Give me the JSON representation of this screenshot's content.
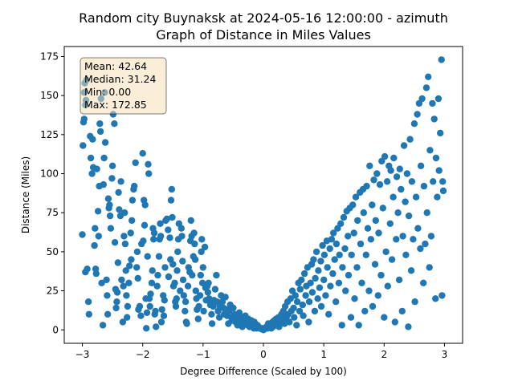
{
  "chart_data": {
    "type": "scatter",
    "title_line1": "Random city Buynaksk at 2024-05-16 12:00:00  - azimuth",
    "title_line2": "Graph of Distance in Miles Values",
    "xlabel": "Degree Difference (Scaled by 100)",
    "ylabel": "Distance (Miles)",
    "xlim": [
      -3.3,
      3.3
    ],
    "ylim": [
      -8.6,
      181.4
    ],
    "xticks": [
      -3,
      -2,
      -1,
      0,
      1,
      2,
      3
    ],
    "xtick_labels": [
      "−3",
      "−2",
      "−1",
      "0",
      "1",
      "2",
      "3"
    ],
    "yticks": [
      0,
      25,
      50,
      75,
      100,
      125,
      150,
      175
    ],
    "ytick_labels": [
      "0",
      "25",
      "50",
      "75",
      "100",
      "125",
      "150",
      "175"
    ],
    "grid": false,
    "marker_color": "#1f77b4",
    "stats": {
      "mean": "Mean: 42.64",
      "median": "Median: 31.24",
      "min": "Min: 0.00",
      "max": "Max: 172.85"
    },
    "points": [
      [
        -3.0,
        61
      ],
      [
        -2.99,
        118
      ],
      [
        -2.98,
        133
      ],
      [
        -2.97,
        135
      ],
      [
        -2.97,
        152
      ],
      [
        -2.96,
        158
      ],
      [
        -2.95,
        144
      ],
      [
        -2.94,
        147
      ],
      [
        -2.93,
        160
      ],
      [
        -2.95,
        37
      ],
      [
        -2.92,
        39
      ],
      [
        -2.9,
        18
      ],
      [
        -2.89,
        10
      ],
      [
        -2.87,
        124
      ],
      [
        -2.86,
        110
      ],
      [
        -2.84,
        100
      ],
      [
        -2.83,
        122
      ],
      [
        -2.82,
        104
      ],
      [
        -2.8,
        54
      ],
      [
        -2.79,
        65
      ],
      [
        -2.78,
        39
      ],
      [
        -2.77,
        36
      ],
      [
        -2.76,
        103
      ],
      [
        -2.74,
        76
      ],
      [
        -2.73,
        60
      ],
      [
        -2.72,
        92
      ],
      [
        -2.71,
        132
      ],
      [
        -2.7,
        127
      ],
      [
        -2.69,
        148
      ],
      [
        -2.68,
        30
      ],
      [
        -2.66,
        3
      ],
      [
        -2.65,
        93
      ],
      [
        -2.64,
        110
      ],
      [
        -2.63,
        152
      ],
      [
        -2.62,
        120
      ],
      [
        -2.6,
        32
      ],
      [
        -2.59,
        22
      ],
      [
        -2.58,
        10
      ],
      [
        -2.57,
        84
      ],
      [
        -2.56,
        78
      ],
      [
        -2.55,
        80
      ],
      [
        -2.54,
        73
      ],
      [
        -2.53,
        65
      ],
      [
        -2.51,
        97
      ],
      [
        -2.5,
        105
      ],
      [
        -2.49,
        138
      ],
      [
        -2.47,
        132
      ],
      [
        -2.46,
        56
      ],
      [
        -2.45,
        26
      ],
      [
        -2.44,
        14
      ],
      [
        -2.43,
        18
      ],
      [
        -2.42,
        24
      ],
      [
        -2.41,
        43
      ],
      [
        -2.4,
        88
      ],
      [
        -2.39,
        77
      ],
      [
        -2.37,
        73
      ],
      [
        -2.36,
        95
      ],
      [
        -2.35,
        32
      ],
      [
        -2.33,
        5
      ],
      [
        -2.32,
        28
      ],
      [
        -2.31,
        60
      ],
      [
        -2.3,
        75
      ],
      [
        -2.29,
        55
      ],
      [
        -2.28,
        38
      ],
      [
        -2.27,
        22
      ],
      [
        -2.26,
        8
      ],
      [
        -2.25,
        15
      ],
      [
        -2.23,
        30
      ],
      [
        -2.22,
        41
      ],
      [
        -2.2,
        62
      ],
      [
        -2.19,
        45
      ],
      [
        -2.18,
        70
      ],
      [
        -2.17,
        83
      ],
      [
        -2.15,
        90
      ],
      [
        -2.14,
        92
      ],
      [
        -2.12,
        107
      ],
      [
        -2.1,
        40
      ],
      [
        -2.09,
        50
      ],
      [
        -2.08,
        33
      ],
      [
        -2.07,
        13
      ],
      [
        -2.05,
        15
      ],
      [
        -2.03,
        9
      ],
      [
        -2.02,
        55
      ],
      [
        -2.0,
        113
      ],
      [
        -1.99,
        57
      ],
      [
        -1.98,
        83
      ],
      [
        -1.97,
        67
      ],
      [
        -1.96,
        80
      ],
      [
        -1.95,
        20
      ],
      [
        -1.94,
        1
      ],
      [
        -1.93,
        11
      ],
      [
        -1.92,
        47
      ],
      [
        -1.91,
        106
      ],
      [
        -1.9,
        100
      ],
      [
        -1.89,
        20
      ],
      [
        -1.88,
        15
      ],
      [
        -1.87,
        23
      ],
      [
        -1.85,
        30
      ],
      [
        -1.84,
        38
      ],
      [
        -1.83,
        65
      ],
      [
        -1.82,
        58
      ],
      [
        -1.81,
        62
      ],
      [
        -1.8,
        10
      ],
      [
        -1.79,
        12
      ],
      [
        -1.78,
        2
      ],
      [
        -1.76,
        28
      ],
      [
        -1.75,
        35
      ],
      [
        -1.73,
        47
      ],
      [
        -1.72,
        58
      ],
      [
        -1.71,
        68
      ],
      [
        -1.7,
        60
      ],
      [
        -1.69,
        5
      ],
      [
        -1.68,
        13
      ],
      [
        -1.66,
        22
      ],
      [
        -1.65,
        9
      ],
      [
        -1.64,
        19
      ],
      [
        -1.63,
        40
      ],
      [
        -1.62,
        70
      ],
      [
        -1.6,
        71
      ],
      [
        -1.58,
        64
      ],
      [
        -1.57,
        34
      ],
      [
        -1.55,
        59
      ],
      [
        -1.54,
        45
      ],
      [
        -1.53,
        83
      ],
      [
        -1.52,
        90
      ],
      [
        -1.51,
        72
      ],
      [
        -1.5,
        42
      ],
      [
        -1.49,
        28
      ],
      [
        -1.47,
        30
      ],
      [
        -1.46,
        18
      ],
      [
        -1.45,
        15
      ],
      [
        -1.44,
        20
      ],
      [
        -1.43,
        38
      ],
      [
        -1.42,
        50
      ],
      [
        -1.41,
        58
      ],
      [
        -1.4,
        68
      ],
      [
        -1.38,
        25
      ],
      [
        -1.36,
        65
      ],
      [
        -1.35,
        60
      ],
      [
        -1.34,
        44
      ],
      [
        -1.33,
        32
      ],
      [
        -1.32,
        22
      ],
      [
        -1.3,
        12
      ],
      [
        -1.29,
        18
      ],
      [
        -1.28,
        5
      ],
      [
        -1.27,
        4
      ],
      [
        -1.25,
        28
      ],
      [
        -1.24,
        40
      ],
      [
        -1.22,
        37
      ],
      [
        -1.21,
        57
      ],
      [
        -1.2,
        70
      ],
      [
        -1.19,
        60
      ],
      [
        -1.18,
        35
      ],
      [
        -1.16,
        47
      ],
      [
        -1.15,
        62
      ],
      [
        -1.14,
        55
      ],
      [
        -1.13,
        45
      ],
      [
        -1.12,
        25
      ],
      [
        -1.11,
        20
      ],
      [
        -1.1,
        13
      ],
      [
        -1.08,
        7
      ],
      [
        -1.07,
        15
      ],
      [
        -1.05,
        22
      ],
      [
        -1.04,
        35
      ],
      [
        -1.03,
        50
      ],
      [
        -1.02,
        58
      ],
      [
        -1.01,
        30
      ],
      [
        -1.0,
        40
      ],
      [
        -0.99,
        12
      ],
      [
        -0.97,
        53
      ],
      [
        -0.96,
        27
      ],
      [
        -0.95,
        19
      ],
      [
        -0.93,
        28
      ],
      [
        -0.92,
        24
      ],
      [
        -0.91,
        30
      ],
      [
        -0.9,
        20
      ],
      [
        -0.88,
        16
      ],
      [
        -0.86,
        10
      ],
      [
        -0.85,
        4
      ],
      [
        -0.83,
        15
      ],
      [
        -0.82,
        19
      ],
      [
        -0.8,
        26
      ],
      [
        -0.78,
        35
      ],
      [
        -0.77,
        18
      ],
      [
        -0.75,
        12
      ],
      [
        -0.73,
        8
      ],
      [
        -0.72,
        15
      ],
      [
        -0.7,
        22
      ],
      [
        -0.68,
        18
      ],
      [
        -0.66,
        14
      ],
      [
        -0.65,
        10
      ],
      [
        -0.63,
        21
      ],
      [
        -0.62,
        13
      ],
      [
        -0.6,
        9
      ],
      [
        -0.58,
        4
      ],
      [
        -0.57,
        12
      ],
      [
        -0.55,
        16
      ],
      [
        -0.53,
        8
      ],
      [
        -0.52,
        6
      ],
      [
        -0.5,
        14
      ],
      [
        -0.48,
        10
      ],
      [
        -0.46,
        5
      ],
      [
        -0.45,
        9
      ],
      [
        -0.43,
        3
      ],
      [
        -0.42,
        7
      ],
      [
        -0.4,
        11
      ],
      [
        -0.38,
        5
      ],
      [
        -0.36,
        8
      ],
      [
        -0.35,
        2
      ],
      [
        -0.33,
        6
      ],
      [
        -0.31,
        4
      ],
      [
        -0.3,
        9
      ],
      [
        -0.28,
        5
      ],
      [
        -0.26,
        3
      ],
      [
        -0.25,
        7
      ],
      [
        -0.23,
        2
      ],
      [
        -0.21,
        4
      ],
      [
        -0.2,
        6
      ],
      [
        -0.18,
        3
      ],
      [
        -0.16,
        1
      ],
      [
        -0.15,
        5
      ],
      [
        -0.13,
        2
      ],
      [
        -0.11,
        1
      ],
      [
        -0.1,
        3
      ],
      [
        -0.08,
        2
      ],
      [
        -0.06,
        1
      ],
      [
        -0.05,
        1
      ],
      [
        -0.03,
        0.5
      ],
      [
        -0.02,
        1
      ],
      [
        0.0,
        0
      ],
      [
        0.02,
        0.5
      ],
      [
        0.04,
        1
      ],
      [
        0.05,
        2
      ],
      [
        0.07,
        1
      ],
      [
        0.08,
        4
      ],
      [
        0.1,
        2
      ],
      [
        0.12,
        3
      ],
      [
        0.13,
        1
      ],
      [
        0.15,
        5
      ],
      [
        0.16,
        2
      ],
      [
        0.18,
        6
      ],
      [
        0.2,
        3
      ],
      [
        0.21,
        7
      ],
      [
        0.23,
        4
      ],
      [
        0.25,
        8
      ],
      [
        0.26,
        2
      ],
      [
        0.28,
        5
      ],
      [
        0.3,
        10
      ],
      [
        0.31,
        6
      ],
      [
        0.33,
        12
      ],
      [
        0.35,
        4
      ],
      [
        0.36,
        15
      ],
      [
        0.38,
        8
      ],
      [
        0.4,
        18
      ],
      [
        0.41,
        10
      ],
      [
        0.43,
        5
      ],
      [
        0.45,
        20
      ],
      [
        0.46,
        12
      ],
      [
        0.48,
        25
      ],
      [
        0.5,
        14
      ],
      [
        0.51,
        8
      ],
      [
        0.53,
        22
      ],
      [
        0.55,
        3
      ],
      [
        0.56,
        18
      ],
      [
        0.58,
        30
      ],
      [
        0.6,
        12
      ],
      [
        0.61,
        26
      ],
      [
        0.63,
        32
      ],
      [
        0.65,
        16
      ],
      [
        0.66,
        9
      ],
      [
        0.68,
        36
      ],
      [
        0.7,
        22
      ],
      [
        0.71,
        28
      ],
      [
        0.73,
        40
      ],
      [
        0.75,
        5
      ],
      [
        0.76,
        18
      ],
      [
        0.78,
        30
      ],
      [
        0.8,
        42
      ],
      [
        0.81,
        24
      ],
      [
        0.83,
        45
      ],
      [
        0.85,
        12
      ],
      [
        0.86,
        33
      ],
      [
        0.88,
        50
      ],
      [
        0.9,
        20
      ],
      [
        0.91,
        38
      ],
      [
        0.93,
        27
      ],
      [
        0.95,
        44
      ],
      [
        0.96,
        15
      ],
      [
        0.98,
        54
      ],
      [
        1.0,
        32
      ],
      [
        1.01,
        48
      ],
      [
        1.03,
        22
      ],
      [
        1.05,
        57
      ],
      [
        1.06,
        40
      ],
      [
        1.08,
        10
      ],
      [
        1.1,
        52
      ],
      [
        1.11,
        28
      ],
      [
        1.13,
        58
      ],
      [
        1.15,
        36
      ],
      [
        1.16,
        62
      ],
      [
        1.18,
        45
      ],
      [
        1.2,
        18
      ],
      [
        1.21,
        55
      ],
      [
        1.23,
        65
      ],
      [
        1.25,
        30
      ],
      [
        1.26,
        48
      ],
      [
        1.28,
        68
      ],
      [
        1.3,
        3
      ],
      [
        1.31,
        40
      ],
      [
        1.33,
        72
      ],
      [
        1.35,
        52
      ],
      [
        1.36,
        25
      ],
      [
        1.38,
        76
      ],
      [
        1.4,
        60
      ],
      [
        1.41,
        35
      ],
      [
        1.43,
        78
      ],
      [
        1.45,
        8
      ],
      [
        1.46,
        48
      ],
      [
        1.48,
        80
      ],
      [
        1.5,
        62
      ],
      [
        1.51,
        20
      ],
      [
        1.53,
        85
      ],
      [
        1.55,
        40
      ],
      [
        1.56,
        70
      ],
      [
        1.58,
        3
      ],
      [
        1.6,
        88
      ],
      [
        1.61,
        55
      ],
      [
        1.63,
        30
      ],
      [
        1.65,
        90
      ],
      [
        1.66,
        75
      ],
      [
        1.68,
        12
      ],
      [
        1.7,
        48
      ],
      [
        1.71,
        92
      ],
      [
        1.73,
        65
      ],
      [
        1.75,
        25
      ],
      [
        1.76,
        105
      ],
      [
        1.78,
        58
      ],
      [
        1.8,
        80
      ],
      [
        1.81,
        15
      ],
      [
        1.83,
        96
      ],
      [
        1.85,
        42
      ],
      [
        1.86,
        70
      ],
      [
        1.88,
        100
      ],
      [
        1.9,
        22
      ],
      [
        1.91,
        62
      ],
      [
        1.93,
        93
      ],
      [
        1.95,
        35
      ],
      [
        1.96,
        108
      ],
      [
        1.98,
        78
      ],
      [
        2.0,
        8
      ],
      [
        2.01,
        111
      ],
      [
        2.03,
        50
      ],
      [
        2.05,
        95
      ],
      [
        2.06,
        28
      ],
      [
        2.08,
        105
      ],
      [
        2.1,
        68
      ],
      [
        2.11,
        102
      ],
      [
        2.13,
        45
      ],
      [
        2.15,
        85
      ],
      [
        2.16,
        110
      ],
      [
        2.18,
        5
      ],
      [
        2.2,
        58
      ],
      [
        2.21,
        98
      ],
      [
        2.23,
        75
      ],
      [
        2.25,
        32
      ],
      [
        2.26,
        103
      ],
      [
        2.28,
        90
      ],
      [
        2.3,
        12
      ],
      [
        2.31,
        60
      ],
      [
        2.33,
        118
      ],
      [
        2.35,
        82
      ],
      [
        2.36,
        48
      ],
      [
        2.38,
        100
      ],
      [
        2.4,
        2
      ],
      [
        2.41,
        73
      ],
      [
        2.43,
        122
      ],
      [
        2.45,
        38
      ],
      [
        2.46,
        95
      ],
      [
        2.48,
        58
      ],
      [
        2.5,
        132
      ],
      [
        2.51,
        18
      ],
      [
        2.53,
        85
      ],
      [
        2.55,
        138
      ],
      [
        2.56,
        65
      ],
      [
        2.58,
        145
      ],
      [
        2.6,
        52
      ],
      [
        2.61,
        105
      ],
      [
        2.63,
        148
      ],
      [
        2.65,
        30
      ],
      [
        2.66,
        92
      ],
      [
        2.68,
        55
      ],
      [
        2.7,
        155
      ],
      [
        2.71,
        75
      ],
      [
        2.73,
        162
      ],
      [
        2.75,
        40
      ],
      [
        2.76,
        115
      ],
      [
        2.78,
        60
      ],
      [
        2.8,
        145
      ],
      [
        2.81,
        95
      ],
      [
        2.83,
        135
      ],
      [
        2.85,
        20
      ],
      [
        2.86,
        110
      ],
      [
        2.88,
        85
      ],
      [
        2.9,
        148
      ],
      [
        2.91,
        102
      ],
      [
        2.93,
        126
      ],
      [
        2.95,
        173
      ],
      [
        2.96,
        22
      ],
      [
        2.97,
        95
      ],
      [
        2.98,
        89
      ]
    ]
  }
}
